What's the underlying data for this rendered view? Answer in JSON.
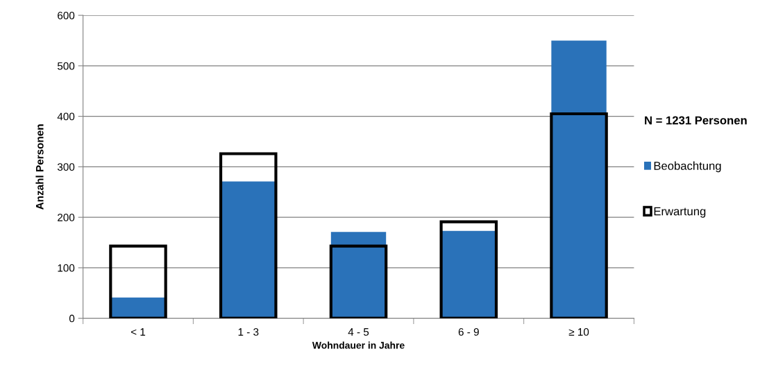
{
  "chart_data": {
    "type": "bar",
    "xlabel": "Wohndauer in Jahre",
    "ylabel": "Anzahl Personen",
    "legend_title": "N = 1231 Personen",
    "categories": [
      "< 1",
      "1 - 3",
      "4 - 5",
      "6 - 9",
      "≥ 10"
    ],
    "series": [
      {
        "name": "Beobachtung",
        "color": "#2a72b9",
        "values": [
          41,
          271,
          171,
          173,
          550
        ]
      },
      {
        "name": "Erwartung",
        "color": "#000000",
        "line_style": "solid",
        "values": [
          143,
          326,
          143,
          191,
          405
        ]
      }
    ],
    "ylim": [
      0,
      600
    ],
    "yticks": [
      0,
      100,
      200,
      300,
      400,
      500,
      600
    ],
    "grid": "y",
    "legend": "right"
  }
}
